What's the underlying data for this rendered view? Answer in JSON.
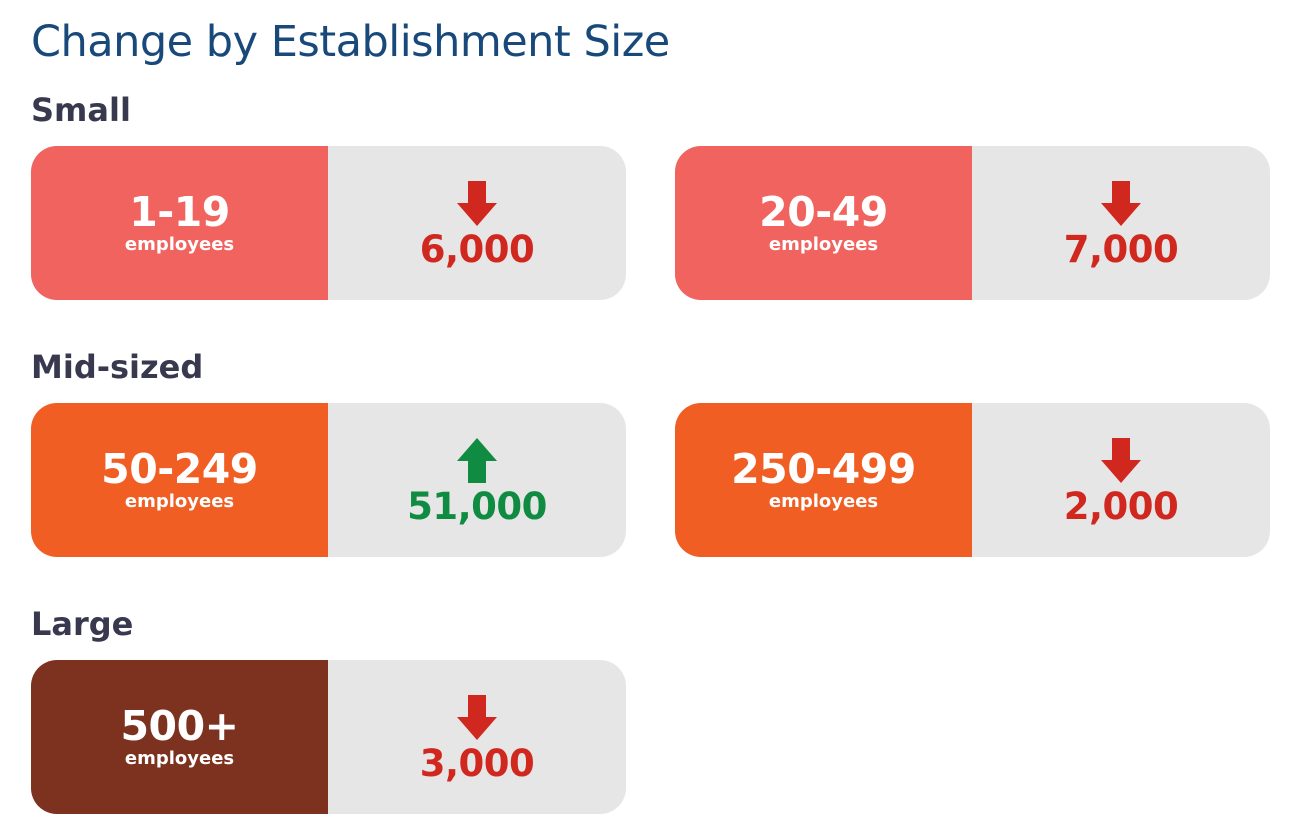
{
  "title": "Change by Establishment Size",
  "colors": {
    "title": "#18497a",
    "heading": "#38394f",
    "small": "#f1635f",
    "mid": "#f05e23",
    "large": "#7d3220",
    "card_bg": "#e6e6e6",
    "decrease": "#d0271f",
    "increase": "#0f8c41"
  },
  "sections": [
    {
      "heading": "Small",
      "cards": [
        {
          "range": "1-19",
          "unit": "employees",
          "direction": "down",
          "arrow_icon": "arrow-down-icon",
          "change": "6,000"
        },
        {
          "range": "20-49",
          "unit": "employees",
          "direction": "down",
          "arrow_icon": "arrow-down-icon",
          "change": "7,000"
        }
      ]
    },
    {
      "heading": "Mid-sized",
      "cards": [
        {
          "range": "50-249",
          "unit": "employees",
          "direction": "up",
          "arrow_icon": "arrow-up-icon",
          "change": "51,000"
        },
        {
          "range": "250-499",
          "unit": "employees",
          "direction": "down",
          "arrow_icon": "arrow-down-icon",
          "change": "2,000"
        }
      ]
    },
    {
      "heading": "Large",
      "cards": [
        {
          "range": "500+",
          "unit": "employees",
          "direction": "down",
          "arrow_icon": "arrow-down-icon",
          "change": "3,000"
        }
      ]
    }
  ]
}
